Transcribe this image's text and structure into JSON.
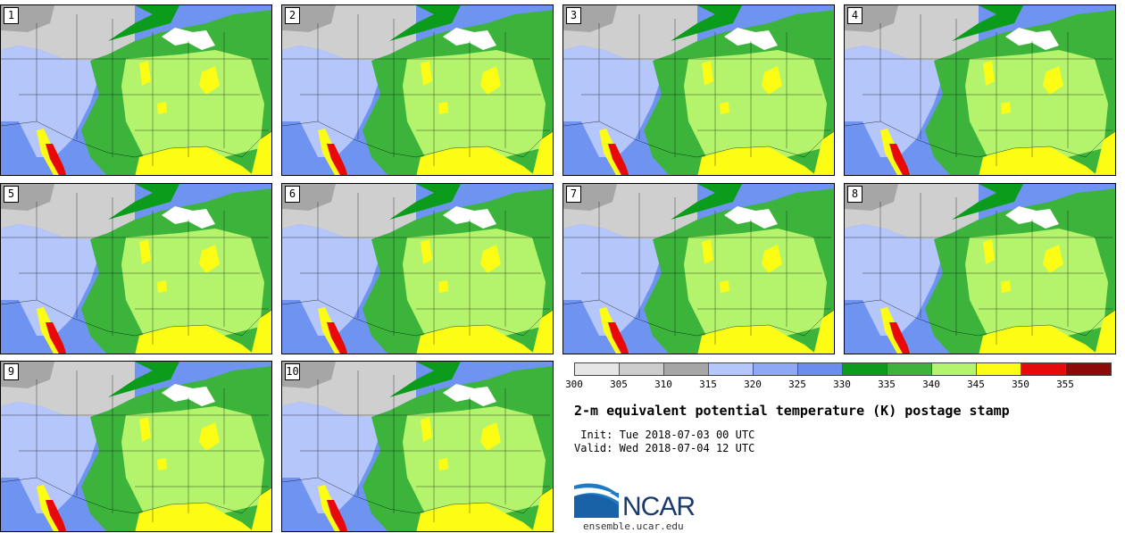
{
  "panels": [
    {
      "label": "1"
    },
    {
      "label": "2"
    },
    {
      "label": "3"
    },
    {
      "label": "4"
    },
    {
      "label": "5"
    },
    {
      "label": "6"
    },
    {
      "label": "7"
    },
    {
      "label": "8"
    },
    {
      "label": "9"
    },
    {
      "label": "10"
    }
  ],
  "colorbar": {
    "colors": [
      "#e6e6e6",
      "#cccccc",
      "#a6a6a6",
      "#b4c6fa",
      "#8ea7f6",
      "#6c8cf0",
      "#0c9c1c",
      "#3cb43c",
      "#b4f46c",
      "#fcfc14",
      "#e60a0a",
      "#8c0a0a"
    ],
    "ticks": [
      "300",
      "305",
      "310",
      "315",
      "320",
      "325",
      "330",
      "335",
      "340",
      "345",
      "350",
      "355"
    ]
  },
  "title": "2-m equivalent potential temperature (K) postage stamp",
  "init": " Init: Tue 2018-07-03 00 UTC",
  "valid": "Valid: Wed 2018-07-04 12 UTC",
  "logo_text": "NCAR",
  "url": "ensemble.ucar.edu"
}
